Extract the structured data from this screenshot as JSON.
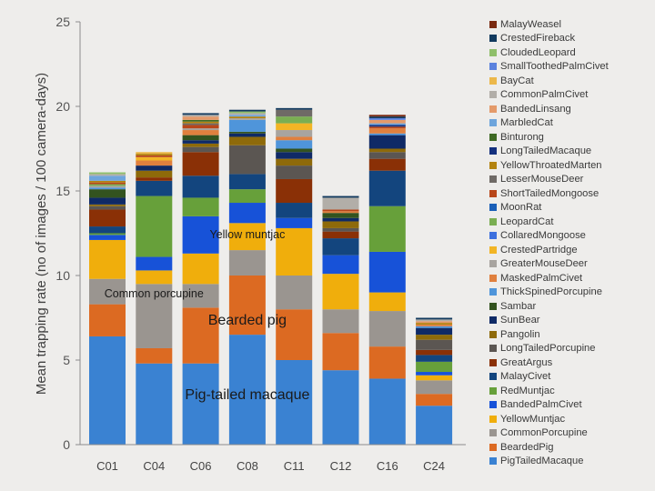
{
  "chart_data": {
    "type": "bar",
    "stacked": true,
    "title": "",
    "xlabel": "",
    "ylabel": "Mean trapping rate (no of images / 100 camera-days)",
    "ylim": [
      0,
      25
    ],
    "yticks": [
      "0",
      "5",
      "10",
      "15",
      "20",
      "25"
    ],
    "categories": [
      "C01",
      "C04",
      "C06",
      "C08",
      "C11",
      "C12",
      "C16",
      "C24"
    ],
    "legend_position": "right",
    "series": [
      {
        "name": "PigTailedMacaque",
        "color": "#3a82d2",
        "values": [
          6.4,
          4.8,
          4.8,
          6.5,
          5.0,
          4.4,
          3.9,
          2.3
        ]
      },
      {
        "name": "BeardedPig",
        "color": "#dc6a22",
        "values": [
          1.9,
          0.9,
          3.3,
          3.5,
          3.0,
          2.2,
          1.9,
          0.7
        ]
      },
      {
        "name": "CommonPorcupine",
        "color": "#9a9590",
        "values": [
          1.5,
          3.8,
          1.4,
          1.5,
          2.0,
          1.4,
          2.1,
          0.8
        ]
      },
      {
        "name": "YellowMuntjac",
        "color": "#f0ae0c",
        "values": [
          2.3,
          0.8,
          1.8,
          1.6,
          2.8,
          2.1,
          1.1,
          0.3
        ]
      },
      {
        "name": "BandedPalmCivet",
        "color": "#1752d8",
        "values": [
          0.3,
          0.8,
          2.2,
          1.2,
          0.6,
          1.1,
          2.4,
          0.2
        ]
      },
      {
        "name": "RedMuntjac",
        "color": "#67a03a",
        "values": [
          0.1,
          3.6,
          1.1,
          0.8,
          0.0,
          0.0,
          2.7,
          0.6
        ]
      },
      {
        "name": "MalayCivet",
        "color": "#13457e",
        "values": [
          0.4,
          0.9,
          1.3,
          0.9,
          0.9,
          1.0,
          2.1,
          0.4
        ]
      },
      {
        "name": "GreatArgus",
        "color": "#8a3006",
        "values": [
          1.0,
          0.2,
          1.4,
          0.0,
          1.4,
          0.4,
          0.7,
          0.3
        ]
      },
      {
        "name": "LongTailedPorcupine",
        "color": "#5b5652",
        "values": [
          0.2,
          0.0,
          0.3,
          1.7,
          0.8,
          0.2,
          0.4,
          0.6
        ]
      },
      {
        "name": "Pangolin",
        "color": "#8e6a0a",
        "values": [
          0.1,
          0.4,
          0.2,
          0.5,
          0.4,
          0.4,
          0.2,
          0.3
        ]
      },
      {
        "name": "SunBear",
        "color": "#0f2a66",
        "values": [
          0.4,
          0.3,
          0.2,
          0.2,
          0.4,
          0.2,
          0.8,
          0.4
        ]
      },
      {
        "name": "Sambar",
        "color": "#33531f",
        "values": [
          0.5,
          0.0,
          0.3,
          0.1,
          0.2,
          0.3,
          0.0,
          0.0
        ]
      },
      {
        "name": "ThickSpinedPorcupine",
        "color": "#4f95da",
        "values": [
          0.1,
          0.0,
          0.0,
          0.7,
          0.5,
          0.0,
          0.1,
          0.1
        ]
      },
      {
        "name": "MaskedPalmCivet",
        "color": "#e0803e",
        "values": [
          0.0,
          0.3,
          0.3,
          0.0,
          0.2,
          0.1,
          0.3,
          0.1
        ]
      },
      {
        "name": "GreaterMouseDeer",
        "color": "#a8a49f",
        "values": [
          0.1,
          0.0,
          0.1,
          0.1,
          0.4,
          0.0,
          0.0,
          0.0
        ]
      },
      {
        "name": "CrestedPartridge",
        "color": "#f2b525",
        "values": [
          0.0,
          0.2,
          0.0,
          0.0,
          0.4,
          0.0,
          0.0,
          0.0
        ]
      },
      {
        "name": "CollaredMongoose",
        "color": "#3d70de",
        "values": [
          0.0,
          0.0,
          0.0,
          0.0,
          0.0,
          0.0,
          0.0,
          0.0
        ]
      },
      {
        "name": "LeopardCat",
        "color": "#7aae52",
        "values": [
          0.1,
          0.0,
          0.0,
          0.0,
          0.4,
          0.0,
          0.0,
          0.0
        ]
      },
      {
        "name": "MoonRat",
        "color": "#1a5fb8",
        "values": [
          0.0,
          0.0,
          0.0,
          0.0,
          0.0,
          0.0,
          0.0,
          0.0
        ]
      },
      {
        "name": "ShortTailedMongoose",
        "color": "#b8461a",
        "values": [
          0.1,
          0.1,
          0.2,
          0.0,
          0.0,
          0.1,
          0.1,
          0.0
        ]
      },
      {
        "name": "LesserMouseDeer",
        "color": "#6f6a66",
        "values": [
          0.0,
          0.0,
          0.1,
          0.0,
          0.4,
          0.0,
          0.0,
          0.0
        ]
      },
      {
        "name": "YellowThroatedMarten",
        "color": "#b38310",
        "values": [
          0.1,
          0.1,
          0.1,
          0.1,
          0.0,
          0.0,
          0.0,
          0.1
        ]
      },
      {
        "name": "LongTailedMacaque",
        "color": "#14307e",
        "values": [
          0.0,
          0.0,
          0.0,
          0.0,
          0.0,
          0.0,
          0.1,
          0.0
        ]
      },
      {
        "name": "Binturong",
        "color": "#3f6a24",
        "values": [
          0.0,
          0.0,
          0.1,
          0.0,
          0.0,
          0.0,
          0.0,
          0.0
        ]
      },
      {
        "name": "MarbledCat",
        "color": "#6ea5dc",
        "values": [
          0.3,
          0.0,
          0.0,
          0.1,
          0.0,
          0.0,
          0.1,
          0.0
        ]
      },
      {
        "name": "BandedLinsang",
        "color": "#e49a6a",
        "values": [
          0.0,
          0.0,
          0.2,
          0.0,
          0.0,
          0.0,
          0.2,
          0.1
        ]
      },
      {
        "name": "CommonPalmCivet",
        "color": "#b2aea8",
        "values": [
          0.1,
          0.0,
          0.1,
          0.1,
          0.0,
          0.7,
          0.0,
          0.1
        ]
      },
      {
        "name": "BayCat",
        "color": "#ecb84a",
        "values": [
          0.0,
          0.1,
          0.0,
          0.0,
          0.0,
          0.0,
          0.0,
          0.0
        ]
      },
      {
        "name": "SmallToothedPalmCivet",
        "color": "#5b82de",
        "values": [
          0.0,
          0.0,
          0.0,
          0.0,
          0.0,
          0.0,
          0.1,
          0.0
        ]
      },
      {
        "name": "CloudedLeopard",
        "color": "#8fbf6a",
        "values": [
          0.1,
          0.0,
          0.0,
          0.1,
          0.0,
          0.0,
          0.0,
          0.0
        ]
      },
      {
        "name": "CrestedFireback",
        "color": "#123a5e",
        "values": [
          0.0,
          0.0,
          0.1,
          0.1,
          0.1,
          0.1,
          0.1,
          0.1
        ]
      },
      {
        "name": "MalayWeasel",
        "color": "#7a2a10",
        "values": [
          0.0,
          0.0,
          0.0,
          0.0,
          0.0,
          0.0,
          0.1,
          0.0
        ]
      }
    ],
    "annotations": [
      {
        "text": "Common porcupine",
        "x": "C04",
        "y": 8.7,
        "size": "small"
      },
      {
        "text": "Yellow muntjac",
        "x": "C08",
        "y": 12.2,
        "size": "small"
      },
      {
        "text": "Bearded pig",
        "x": "C08",
        "y": 7.1,
        "size": "large"
      },
      {
        "text": "Pig-tailed macaque",
        "x": "C08",
        "y": 2.7,
        "size": "large"
      }
    ]
  }
}
